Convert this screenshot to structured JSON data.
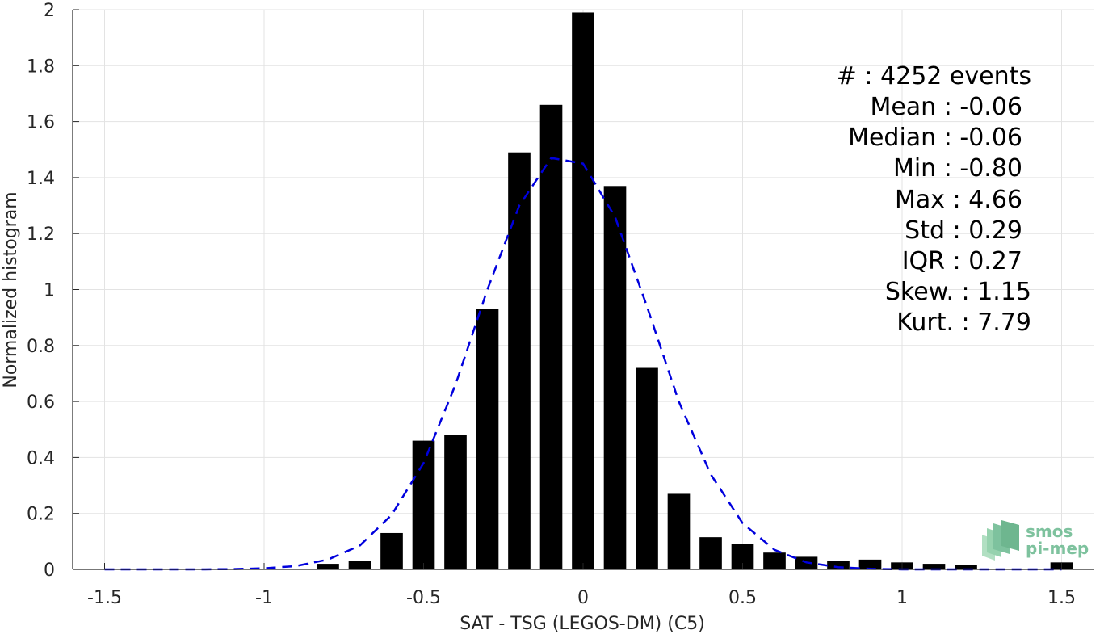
{
  "chart_data": {
    "type": "bar",
    "xlabel": "SAT - TSG (LEGOS-DM) (C5)",
    "ylabel": "Normalized histogram",
    "xlim": [
      -1.6,
      1.6
    ],
    "ylim": [
      0,
      2
    ],
    "grid": true,
    "xticks": [
      -1.5,
      -1,
      -0.5,
      0,
      0.5,
      1,
      1.5
    ],
    "xtick_labels": [
      "-1.5",
      "-1",
      "-0.5",
      "0",
      "0.5",
      "1",
      "1.5"
    ],
    "yticks": [
      0,
      0.2,
      0.4,
      0.6,
      0.8,
      1,
      1.2,
      1.4,
      1.6,
      1.8,
      2
    ],
    "ytick_labels": [
      "0",
      "0.2",
      "0.4",
      "0.6",
      "0.8",
      "1",
      "1.2",
      "1.4",
      "1.6",
      "1.8",
      "2"
    ],
    "bar_width": 0.07,
    "bar_color": "#000000",
    "bars": {
      "x": [
        -0.8,
        -0.7,
        -0.6,
        -0.5,
        -0.4,
        -0.3,
        -0.2,
        -0.1,
        0.0,
        0.1,
        0.2,
        0.3,
        0.4,
        0.5,
        0.6,
        0.7,
        0.8,
        0.9,
        1.0,
        1.1,
        1.2,
        1.5
      ],
      "values": [
        0.02,
        0.03,
        0.13,
        0.46,
        0.48,
        0.93,
        1.49,
        1.66,
        1.99,
        1.37,
        0.72,
        0.27,
        0.115,
        0.09,
        0.06,
        0.045,
        0.03,
        0.035,
        0.025,
        0.02,
        0.015,
        0.025
      ]
    },
    "series": [
      {
        "style": "dashed",
        "color": "#0000dd",
        "x": [
          -1.5,
          -1.4,
          -1.3,
          -1.2,
          -1.1,
          -1.0,
          -0.9,
          -0.8,
          -0.7,
          -0.6,
          -0.5,
          -0.4,
          -0.3,
          -0.2,
          -0.1,
          0.0,
          0.1,
          0.2,
          0.3,
          0.4,
          0.5,
          0.6,
          0.7,
          0.8,
          0.9,
          1.0,
          1.1,
          1.2,
          1.3,
          1.4,
          1.5
        ],
        "values": [
          0.0,
          0.0,
          0.0,
          0.0,
          0.001,
          0.004,
          0.012,
          0.035,
          0.085,
          0.195,
          0.38,
          0.66,
          1.0,
          1.3,
          1.47,
          1.45,
          1.26,
          0.94,
          0.6,
          0.34,
          0.165,
          0.07,
          0.025,
          0.008,
          0.002,
          0.0,
          0.0,
          0.0,
          0.0,
          0.0,
          0.0
        ]
      }
    ]
  },
  "stats": [
    "#  : 4252 events",
    "Mean : -0.06",
    "Median : -0.06",
    "Min : -0.80",
    "Max : 4.66",
    "Std : 0.29",
    "IQR : 0.27",
    "Skew. : 1.15",
    "Kurt. : 7.79"
  ],
  "logo": {
    "line1": "smos",
    "line2": "pi-mep",
    "color": "#5fb486"
  }
}
